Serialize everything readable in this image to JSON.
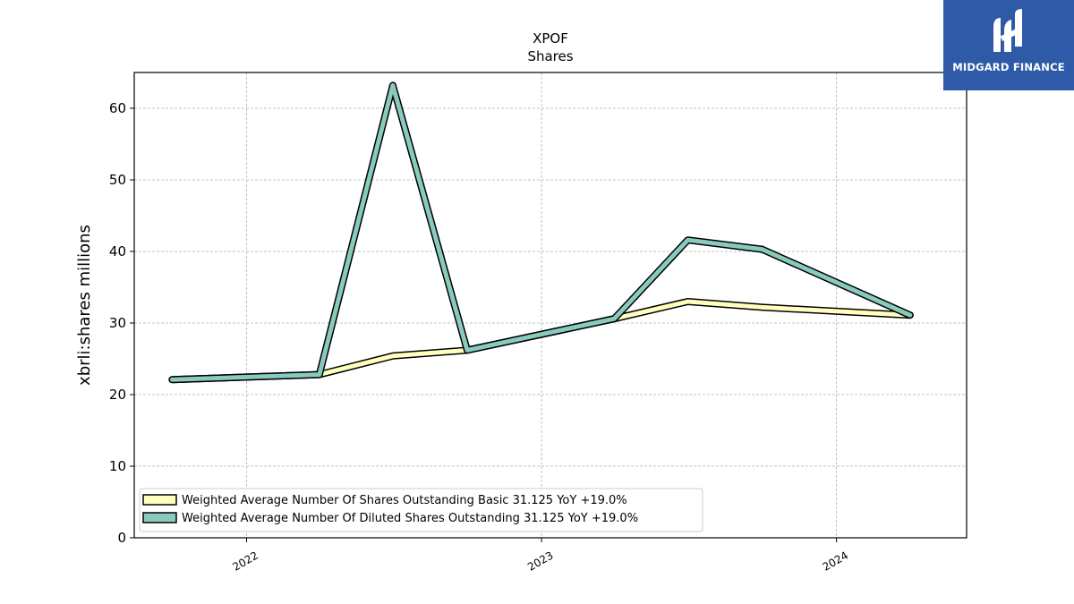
{
  "brand": {
    "name": "MIDGARD FINANCE",
    "bg": "#2f5aa8"
  },
  "chart_data": {
    "type": "line",
    "title": "XPOF",
    "subtitle": "Shares",
    "ylabel": "xbrli:shares millions",
    "xlabel": "",
    "ylim": [
      0,
      65
    ],
    "yticks": [
      0,
      10,
      20,
      30,
      40,
      50,
      60
    ],
    "xticks": [
      "2022",
      "2023",
      "2024"
    ],
    "xlim": [
      "2021-08-15",
      "2024-06-10"
    ],
    "grid": true,
    "legend_position": "lower-left",
    "x": [
      "2021-10-01",
      "2022-04-01",
      "2022-07-01",
      "2022-10-01",
      "2023-04-01",
      "2023-07-01",
      "2023-10-01",
      "2024-04-01"
    ],
    "series": [
      {
        "name": "Weighted Average Number Of Shares Outstanding Basic  31.125 YoY +19.0%",
        "color": "#ffffbf",
        "values": [
          22.1,
          22.8,
          25.4,
          26.2,
          30.6,
          33.0,
          32.2,
          31.1
        ]
      },
      {
        "name": "Weighted Average Number Of Diluted Shares Outstanding  31.125 YoY +19.0%",
        "color": "#88cbbd",
        "values": [
          22.1,
          22.8,
          63.2,
          26.2,
          30.6,
          41.6,
          40.3,
          31.1
        ]
      }
    ]
  }
}
